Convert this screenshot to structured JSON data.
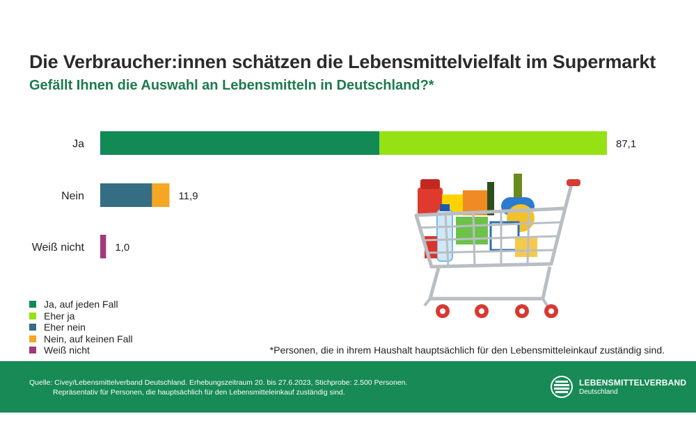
{
  "title": "Die Verbraucher:innen schätzen die Lebensmittelvielfalt im Supermarkt",
  "subtitle": "Gefällt Ihnen die Auswahl an Lebensmitteln in Deutschland?*",
  "chart_data": {
    "type": "bar",
    "orientation": "horizontal",
    "stacked": true,
    "categories": [
      "Ja",
      "Nein",
      "Weiß nicht"
    ],
    "totals": [
      "87,1",
      "11,9",
      "1,0"
    ],
    "series": [
      {
        "name": "Ja, auf jeden Fall",
        "color": "#118a56",
        "values": [
          48.0,
          0,
          0
        ]
      },
      {
        "name": "Eher ja",
        "color": "#95e114",
        "values": [
          39.1,
          0,
          0
        ]
      },
      {
        "name": "Eher nein",
        "color": "#356d82",
        "values": [
          0,
          8.9,
          0
        ]
      },
      {
        "name": "Nein, auf keinen Fall",
        "color": "#f5a623",
        "values": [
          0,
          3.0,
          0
        ]
      },
      {
        "name": "Weiß nicht",
        "color": "#a23a78",
        "values": [
          0,
          0,
          1.0
        ]
      }
    ],
    "xlim": [
      0,
      87.1
    ],
    "grid": false,
    "legend_position": "bottom-left"
  },
  "footnote": "*Personen, die in ihrem Haushalt hauptsächlich für den Lebensmitteleinkauf zuständig sind.",
  "source_line1": "Quelle: Civey/Lebensmittelverband Deutschland. Erhebungszeitraum 20. bis 27.6.2023, Stichprobe: 2.500 Personen.",
  "source_line2": "Repräsentativ für Personen, die hauptsächlich für den Lebensmitteleinkauf zuständig sind.",
  "logo": {
    "name": "LEBENSMITTELVERBAND",
    "sub": "Deutschland"
  },
  "icons": {
    "cart": "shopping-cart-icon",
    "logo": "lebensmittelverband-logo-icon"
  },
  "colors": {
    "footer": "#178a55",
    "subtitle": "#1d7a4e"
  }
}
